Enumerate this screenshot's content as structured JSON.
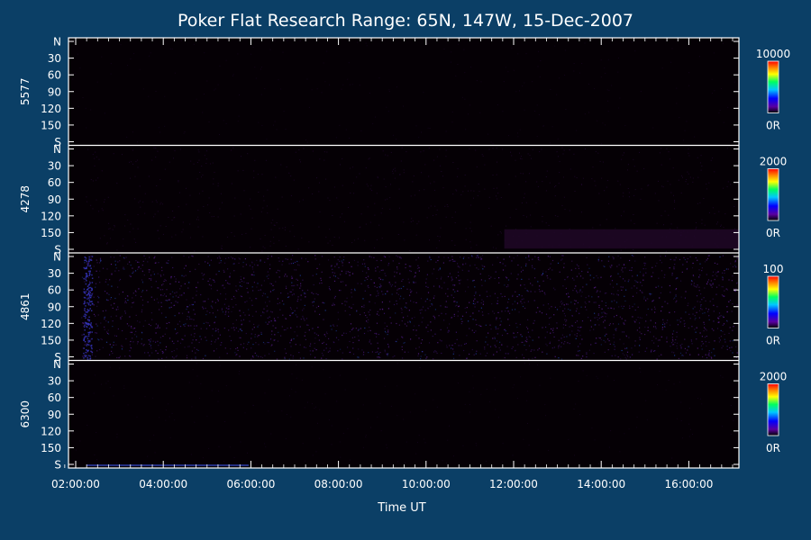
{
  "title": "Poker Flat Research Range: 65N, 147W, 15-Dec-2007",
  "x_axis": {
    "label": "Time UT",
    "tick_labels": [
      "02:00:00",
      "04:00:00",
      "06:00:00",
      "08:00:00",
      "10:00:00",
      "12:00:00",
      "14:00:00",
      "16:00:00"
    ]
  },
  "panels": [
    {
      "wavelength": "5577",
      "y_tick_labels": [
        "N",
        "30",
        "60",
        "90",
        "120",
        "150",
        "S"
      ],
      "colorbar": {
        "max_label": "10000",
        "min_label": "0R"
      },
      "intensity": "very-low-uniform"
    },
    {
      "wavelength": "4278",
      "y_tick_labels": [
        "N",
        "30",
        "60",
        "90",
        "120",
        "150",
        "S"
      ],
      "colorbar": {
        "max_label": "2000",
        "min_label": "0R"
      },
      "intensity": "low-with-faint-band"
    },
    {
      "wavelength": "4861",
      "y_tick_labels": [
        "N",
        "30",
        "60",
        "90",
        "120",
        "150",
        "S"
      ],
      "colorbar": {
        "max_label": "100",
        "min_label": "0R"
      },
      "intensity": "noisy-speckle"
    },
    {
      "wavelength": "6300",
      "y_tick_labels": [
        "N",
        "30",
        "60",
        "90",
        "120",
        "150",
        "S"
      ],
      "colorbar": {
        "max_label": "2000",
        "min_label": "0R"
      },
      "intensity": "very-low-uniform"
    }
  ],
  "chart_data": {
    "type": "heatmap",
    "title": "Poker Flat Research Range: 65N, 147W, 15-Dec-2007",
    "xlabel": "Time UT",
    "ylabel": "",
    "xlim": [
      "02:00:00",
      "17:15:00"
    ],
    "ylim": [
      "N",
      "S"
    ],
    "series": [
      {
        "name": "5577",
        "value_range": [
          0,
          10000
        ],
        "unit": "R"
      },
      {
        "name": "4278",
        "value_range": [
          0,
          2000
        ],
        "unit": "R"
      },
      {
        "name": "4861",
        "value_range": [
          0,
          100
        ],
        "unit": "R"
      },
      {
        "name": "6300",
        "value_range": [
          0,
          2000
        ],
        "unit": "R"
      }
    ],
    "colors": {
      "background": "#0b3f66",
      "plot_area": "#050005",
      "speckle": "#5a1f8f",
      "colorbar_stops": [
        "#000000",
        "#5a00a0",
        "#0000ff",
        "#00c8ff",
        "#00ff60",
        "#ffff00",
        "#ff8000",
        "#ff0000"
      ]
    }
  }
}
